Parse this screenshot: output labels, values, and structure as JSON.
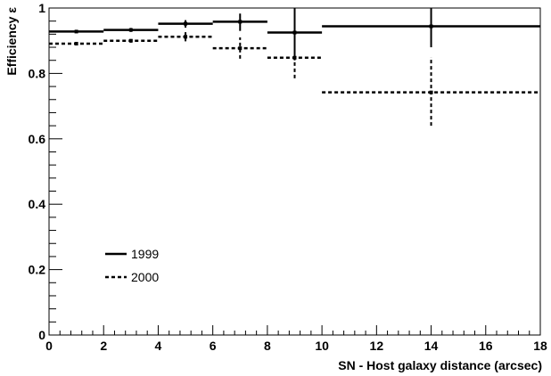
{
  "chart_data": {
    "type": "scatter",
    "title": "",
    "xlabel": "SN - Host galaxy distance (arcsec)",
    "ylabel": "Efficiency ε",
    "xlim": [
      0,
      18
    ],
    "ylim": [
      0,
      1
    ],
    "x_ticks": [
      0,
      2,
      4,
      6,
      8,
      10,
      12,
      14,
      16,
      18
    ],
    "y_ticks": [
      0,
      0.2,
      0.4,
      0.6,
      0.8,
      1
    ],
    "x_tick_labels": [
      "0",
      "2",
      "4",
      "6",
      "8",
      "10",
      "12",
      "14",
      "16",
      "18"
    ],
    "y_tick_labels": [
      "0",
      "0.2",
      "0.4",
      "0.6",
      "0.8",
      "1"
    ],
    "grid": false,
    "legend_position": "lower-left",
    "series": [
      {
        "name": "1999",
        "style": "solid",
        "color": "#000000",
        "points": [
          {
            "x": 1,
            "xlow": 0,
            "xhigh": 2,
            "y": 0.928,
            "ylow": 0.924,
            "yhigh": 0.933
          },
          {
            "x": 3,
            "xlow": 2,
            "xhigh": 4,
            "y": 0.933,
            "ylow": 0.927,
            "yhigh": 0.939
          },
          {
            "x": 5,
            "xlow": 4,
            "xhigh": 6,
            "y": 0.952,
            "ylow": 0.94,
            "yhigh": 0.963
          },
          {
            "x": 7,
            "xlow": 6,
            "xhigh": 8,
            "y": 0.958,
            "ylow": 0.93,
            "yhigh": 0.983
          },
          {
            "x": 9,
            "xlow": 8,
            "xhigh": 10,
            "y": 0.925,
            "ylow": 0.84,
            "yhigh": 1.0
          },
          {
            "x": 14,
            "xlow": 10,
            "xhigh": 18,
            "y": 0.944,
            "ylow": 0.88,
            "yhigh": 1.0
          }
        ]
      },
      {
        "name": "2000",
        "style": "dashed",
        "color": "#000000",
        "points": [
          {
            "x": 1,
            "xlow": 0,
            "xhigh": 2,
            "y": 0.891,
            "ylow": 0.886,
            "yhigh": 0.896
          },
          {
            "x": 3,
            "xlow": 2,
            "xhigh": 4,
            "y": 0.9,
            "ylow": 0.894,
            "yhigh": 0.906
          },
          {
            "x": 5,
            "xlow": 4,
            "xhigh": 6,
            "y": 0.912,
            "ylow": 0.898,
            "yhigh": 0.926
          },
          {
            "x": 7,
            "xlow": 6,
            "xhigh": 8,
            "y": 0.877,
            "ylow": 0.845,
            "yhigh": 0.91
          },
          {
            "x": 9,
            "xlow": 8,
            "xhigh": 10,
            "y": 0.848,
            "ylow": 0.785,
            "yhigh": 0.91
          },
          {
            "x": 14,
            "xlow": 10,
            "xhigh": 18,
            "y": 0.742,
            "ylow": 0.64,
            "yhigh": 0.85
          }
        ]
      }
    ]
  }
}
